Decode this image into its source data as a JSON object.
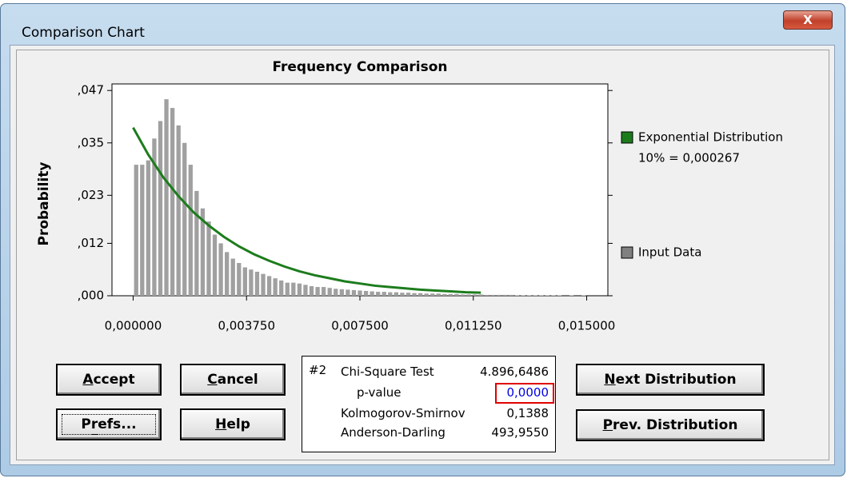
{
  "window": {
    "title": "Comparison Chart",
    "close": "X"
  },
  "chart_data": {
    "type": "histogram",
    "title": "Frequency Comparison",
    "y_label": "Probability",
    "bins": [
      0,
      0.0002,
      0.0004,
      0.0006,
      0.0008,
      0.001,
      0.0012,
      0.0014,
      0.0016,
      0.0018,
      0.002,
      0.0022,
      0.0024,
      0.0026,
      0.0028,
      0.003,
      0.0032,
      0.0034,
      0.0036,
      0.0038,
      0.004,
      0.0042,
      0.0044,
      0.0046,
      0.0048,
      0.005,
      0.0052,
      0.0054,
      0.0056,
      0.0058,
      0.006,
      0.0062,
      0.0064,
      0.0066,
      0.0068,
      0.007,
      0.0072,
      0.0074,
      0.0076,
      0.0078,
      0.008,
      0.0082,
      0.0084,
      0.0086,
      0.0088,
      0.009,
      0.0092,
      0.0094,
      0.0096,
      0.0098,
      0.01,
      0.0102,
      0.0104,
      0.0106,
      0.0108,
      0.011,
      0.0112,
      0.0114,
      0.0116,
      0.0118,
      0.012,
      0.0122,
      0.0124,
      0.0126,
      0.0128,
      0.013,
      0.0132,
      0.0134,
      0.0136,
      0.0138,
      0.014,
      0.0142,
      0.0144,
      0.0146,
      0.0148,
      0.015
    ],
    "series": [
      {
        "name": "Input Data",
        "color": "#a0a0a0",
        "values": [
          0.03,
          0.03,
          0.031,
          0.036,
          0.04,
          0.045,
          0.043,
          0.039,
          0.035,
          0.03,
          0.024,
          0.02,
          0.017,
          0.014,
          0.012,
          0.01,
          0.0085,
          0.0075,
          0.0065,
          0.006,
          0.0055,
          0.005,
          0.0045,
          0.004,
          0.0035,
          0.003,
          0.003,
          0.0028,
          0.0025,
          0.0022,
          0.002,
          0.002,
          0.0018,
          0.0016,
          0.0015,
          0.0014,
          0.0013,
          0.0012,
          0.0011,
          0.001,
          0.0009,
          0.0009,
          0.0008,
          0.0008,
          0.0007,
          0.0007,
          0.0006,
          0.0006,
          0.0005,
          0.0005,
          0.0005,
          0.0004,
          0.0004,
          0.0004,
          0.0003,
          0.0003,
          0.0003,
          0.0003,
          0.0002,
          0.0002,
          0.0002,
          0.0002,
          0.0002,
          0.0001,
          0.0001,
          0.0001,
          0.0001,
          0.0001,
          0.0001,
          0.0001,
          0.0001,
          0,
          0.0001,
          0,
          0.0001
        ]
      }
    ],
    "overlay": {
      "type": "line",
      "name": "Exponential Distribution",
      "annotation": "10% = 0,000267",
      "color": "#1c7c1c",
      "x": [
        0,
        0.0005,
        0.001,
        0.0015,
        0.002,
        0.0025,
        0.003,
        0.0035,
        0.004,
        0.0045,
        0.005,
        0.0055,
        0.006,
        0.0065,
        0.007,
        0.0075,
        0.008,
        0.0085,
        0.009,
        0.0095,
        0.01,
        0.0105,
        0.011,
        0.0115
      ],
      "values": [
        0.0385,
        0.0323,
        0.0271,
        0.0228,
        0.0191,
        0.0161,
        0.0135,
        0.0113,
        0.0095,
        0.008,
        0.0067,
        0.0056,
        0.0047,
        0.004,
        0.0033,
        0.0028,
        0.0023,
        0.002,
        0.0017,
        0.0014,
        0.0012,
        0.001,
        0.0008,
        0.0007
      ]
    },
    "xlim": [
      -0.0007,
      0.0157
    ],
    "ylim": [
      0,
      0.0485
    ],
    "xticks": [
      {
        "value": 0,
        "label": "0,000000"
      },
      {
        "value": 0.00375,
        "label": "0,003750"
      },
      {
        "value": 0.0075,
        "label": "0,007500"
      },
      {
        "value": 0.01125,
        "label": "0,011250"
      },
      {
        "value": 0.015,
        "label": "0,015000"
      }
    ],
    "yticks": [
      {
        "value": 0,
        "label": ",000"
      },
      {
        "value": 0.012,
        "label": ",012"
      },
      {
        "value": 0.023,
        "label": ",023"
      },
      {
        "value": 0.035,
        "label": ",035"
      },
      {
        "value": 0.047,
        "label": ",047"
      }
    ]
  },
  "buttons": [
    "Accept",
    "Cancel",
    "Prefs...",
    "Help",
    "Next Distribution",
    "Prev. Distribution"
  ],
  "stats": {
    "id": "#2",
    "rows": [
      {
        "label": "Chi-Square Test",
        "value": "4.896,6486"
      },
      {
        "label": "p-value",
        "value": "0,0000"
      },
      {
        "label": "Kolmogorov-Smirnov",
        "value": "0,1388"
      },
      {
        "label": "Anderson-Darling",
        "value": "493,9550"
      }
    ]
  }
}
